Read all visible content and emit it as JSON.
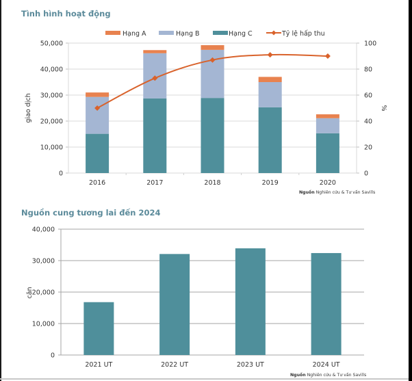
{
  "charts_meta": {
    "colors": {
      "hang_a": "#e8824f",
      "hang_b": "#a4b6d3",
      "hang_c": "#4f8f9b",
      "line": "#d9622b",
      "title": "#5b8a9a",
      "grid": "#d9d9d9",
      "grid2": "#a6a6a6"
    }
  },
  "chart_data": [
    {
      "type": "bar",
      "stacked": true,
      "title": "Tình hình hoạt động",
      "categories": [
        "2016",
        "2017",
        "2018",
        "2019",
        "2020"
      ],
      "series": [
        {
          "name": "Hạng C",
          "values": [
            15100,
            28700,
            28900,
            25300,
            15300
          ]
        },
        {
          "name": "Hạng B",
          "values": [
            14200,
            17400,
            18500,
            9700,
            5800
          ]
        },
        {
          "name": "Hạng A",
          "values": [
            1700,
            1200,
            1800,
            2000,
            1500
          ]
        }
      ],
      "line_series": {
        "name": "Tỷ lệ hấp thu",
        "type": "line",
        "axis": "right",
        "values": [
          50,
          73,
          87,
          91,
          90
        ]
      },
      "legend": [
        "Hạng A",
        "Hạng B",
        "Hạng C",
        "Tỷ lệ hấp thu"
      ],
      "legend_position": "top",
      "ylabel": "giao dịch",
      "ylim": [
        0,
        50000
      ],
      "yticks": [
        "0",
        "10,000",
        "20,000",
        "30,000",
        "40,000",
        "50,000"
      ],
      "y2label": "%",
      "y2lim": [
        0,
        100
      ],
      "y2ticks": [
        "0",
        "20",
        "40",
        "60",
        "80",
        "100"
      ],
      "grid": true,
      "source_bold": "Nguồn",
      "source_rest": "Nghiên cứu & Tư vấn Savills"
    },
    {
      "type": "bar",
      "title": "Nguồn cung tương lai đến 2024",
      "categories": [
        "2021 UT",
        "2022 UT",
        "2023 UT",
        "2024 UT"
      ],
      "values": [
        16800,
        32100,
        33900,
        32400
      ],
      "ylabel": "căn",
      "ylim": [
        0,
        40000
      ],
      "yticks": [
        "0",
        "10,000",
        "20,000",
        "30,000",
        "40,000"
      ],
      "grid": true,
      "source_bold": "Nguồn",
      "source_rest": "Nghiên cứu & Tư vấn Savills"
    }
  ]
}
